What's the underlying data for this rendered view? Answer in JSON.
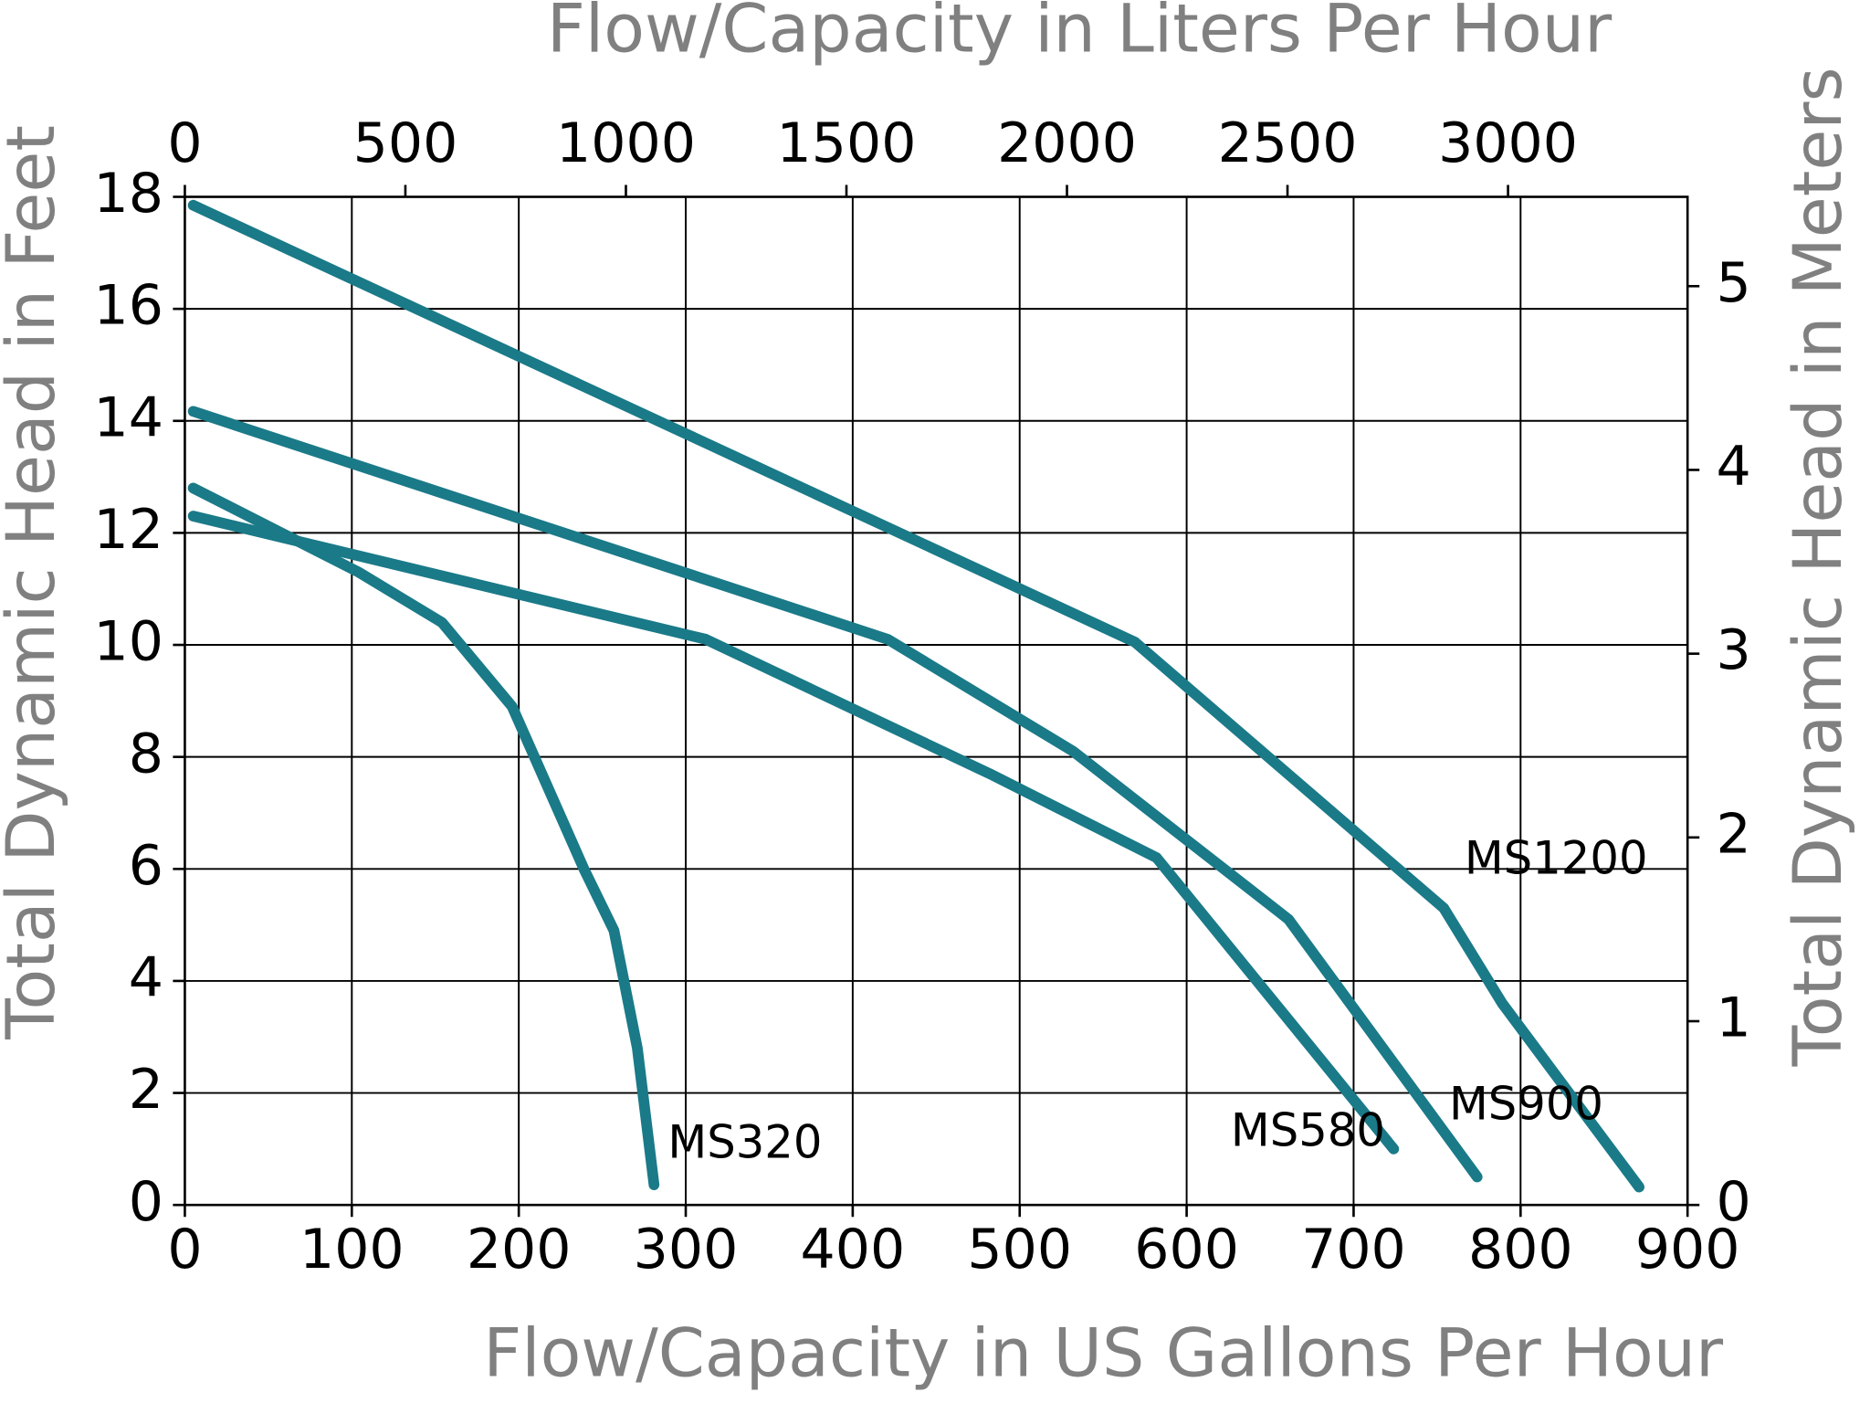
{
  "chart_data": {
    "type": "line",
    "xlabel": "Flow/Capacity in US Gallons Per Hour",
    "ylabel": "Total Dynamic Head in Feet",
    "x2label": "Flow/Capacity in Liters Per Hour",
    "y2label": "Total Dynamic Head in Meters",
    "xlim": [
      0,
      900
    ],
    "xticks": [
      0,
      100,
      200,
      300,
      400,
      500,
      600,
      700,
      800,
      900
    ],
    "ylim": [
      0,
      18
    ],
    "yticks": [
      0,
      2,
      4,
      6,
      8,
      10,
      12,
      14,
      16,
      18
    ],
    "x2lim": [
      0,
      3407
    ],
    "x2ticks": [
      0,
      500,
      1000,
      1500,
      2000,
      2500,
      3000
    ],
    "y2lim": [
      0,
      5.486
    ],
    "y2ticks": [
      0,
      1,
      2,
      3,
      4,
      5
    ],
    "grid": true,
    "series": [
      {
        "name": "MS1200",
        "color": "#1a7a88",
        "x": [
          5,
          569,
          754,
          789,
          871
        ],
        "values": [
          17.85,
          10.05,
          5.3,
          3.6,
          0.32
        ]
      },
      {
        "name": "MS900",
        "color": "#1a7a88",
        "x": [
          5,
          421,
          532,
          661,
          774
        ],
        "values": [
          14.17,
          10.1,
          8.1,
          5.1,
          0.5
        ]
      },
      {
        "name": "MS580",
        "color": "#1a7a88",
        "x": [
          5,
          312,
          482,
          582,
          724
        ],
        "values": [
          12.3,
          10.1,
          7.7,
          6.2,
          1.0
        ]
      },
      {
        "name": "MS320",
        "color": "#1a7a88",
        "x": [
          5,
          104,
          154,
          196,
          239,
          257,
          271,
          281
        ],
        "values": [
          12.8,
          11.3,
          10.4,
          8.9,
          6.0,
          4.9,
          2.8,
          0.36
        ]
      }
    ]
  }
}
